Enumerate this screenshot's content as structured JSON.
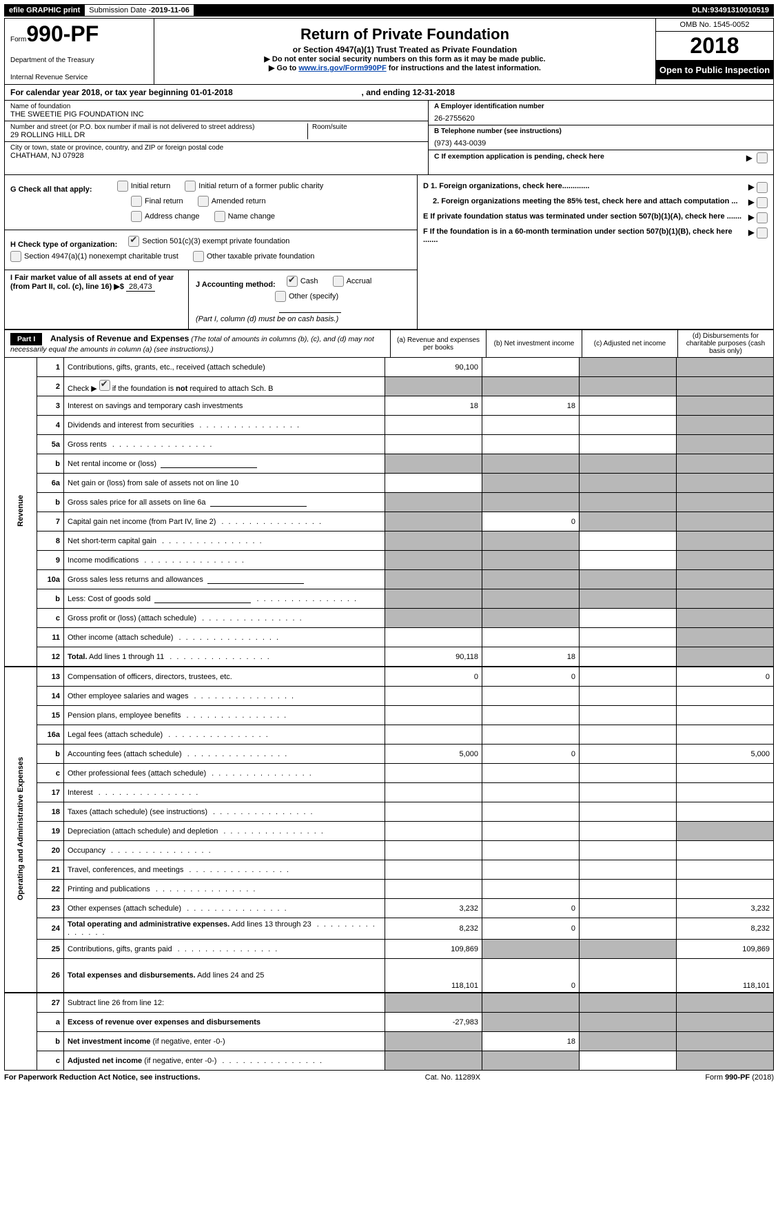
{
  "topbar": {
    "efile": "efile GRAPHIC print",
    "sub_label": "Submission Date - ",
    "sub_date": "2019-11-06",
    "dln_label": "DLN: ",
    "dln": "93491310010519"
  },
  "header": {
    "form_prefix": "Form",
    "form_no": "990-PF",
    "dept1": "Department of the Treasury",
    "dept2": "Internal Revenue Service",
    "title": "Return of Private Foundation",
    "subtitle": "or Section 4947(a)(1) Trust Treated as Private Foundation",
    "warn": "▶ Do not enter social security numbers on this form as it may be made public.",
    "goto_pre": "▶ Go to ",
    "goto_link": "www.irs.gov/Form990PF",
    "goto_post": " for instructions and the latest information.",
    "omb": "OMB No. 1545-0052",
    "year": "2018",
    "open": "Open to Public Inspection"
  },
  "calendar": {
    "pre": "For calendar year 2018, or tax year beginning ",
    "begin": "01-01-2018",
    "mid": " , and ending ",
    "end": "12-31-2018"
  },
  "entity": {
    "name_label": "Name of foundation",
    "name": "THE SWEETIE PIG FOUNDATION INC",
    "addr_label": "Number and street (or P.O. box number if mail is not delivered to street address)",
    "addr": "29 ROLLING HILL DR",
    "room_label": "Room/suite",
    "room": "",
    "city_label": "City or town, state or province, country, and ZIP or foreign postal code",
    "city": "CHATHAM, NJ  07928",
    "A_label": "A Employer identification number",
    "A": "26-2755620",
    "B_label": "B Telephone number (see instructions)",
    "B": "(973) 443-0039",
    "C_label": "C  If exemption application is pending, check here"
  },
  "G": {
    "label": "G Check all that apply:",
    "opts": [
      "Initial return",
      "Initial return of a former public charity",
      "Final return",
      "Amended return",
      "Address change",
      "Name change"
    ]
  },
  "H": {
    "label": "H Check type of organization:",
    "o1": "Section 501(c)(3) exempt private foundation",
    "o2": "Section 4947(a)(1) nonexempt charitable trust",
    "o3": "Other taxable private foundation"
  },
  "I": {
    "label": "I Fair market value of all assets at end of year (from Part II, col. (c), line 16) ▶$",
    "value": "28,473"
  },
  "J": {
    "label": "J Accounting method:",
    "cash": "Cash",
    "accrual": "Accrual",
    "other": "Other (specify)",
    "note": "(Part I, column (d) must be on cash basis.)"
  },
  "right_DEF": {
    "D1": "D 1. Foreign organizations, check here.............",
    "D2": "2. Foreign organizations meeting the 85% test, check here and attach computation ...",
    "E": "E   If private foundation status was terminated under section 507(b)(1)(A), check here .......",
    "F": "F   If the foundation is in a 60-month termination under section 507(b)(1)(B), check here ......."
  },
  "part1": {
    "label": "Part I",
    "heading": "Analysis of Revenue and Expenses",
    "note": "(The total of amounts in columns (b), (c), and (d) may not necessarily equal the amounts in column (a) (see instructions).)",
    "cols": {
      "a": "(a)    Revenue and expenses per books",
      "b": "(b)    Net investment income",
      "c": "(c)    Adjusted net income",
      "d": "(d)    Disbursements for charitable purposes (cash basis only)"
    }
  },
  "rev_label": "Revenue",
  "exp_label": "Operating and Administrative Expenses",
  "rows": [
    {
      "n": "1",
      "t": "Contributions, gifts, grants, etc., received (attach schedule)",
      "a": "90,100",
      "b": "",
      "c": "shade",
      "d": "shade"
    },
    {
      "n": "2",
      "t": "Check ▶ [CB] if the foundation is <b>not</b> required to attach Sch. B",
      "a": "shade",
      "b": "shade",
      "c": "shade",
      "d": "shade",
      "cb": true
    },
    {
      "n": "3",
      "t": "Interest on savings and temporary cash investments",
      "a": "18",
      "b": "18",
      "c": "",
      "d": "shade"
    },
    {
      "n": "4",
      "t": "Dividends and interest from securities",
      "dots": true,
      "a": "",
      "b": "",
      "c": "",
      "d": "shade"
    },
    {
      "n": "5a",
      "t": "Gross rents",
      "dots": true,
      "a": "",
      "b": "",
      "c": "",
      "d": "shade"
    },
    {
      "n": "b",
      "t": "Net rental income or (loss)",
      "uf": true,
      "a": "shade",
      "b": "shade",
      "c": "shade",
      "d": "shade"
    },
    {
      "n": "6a",
      "t": "Net gain or (loss) from sale of assets not on line 10",
      "a": "",
      "b": "shade",
      "c": "shade",
      "d": "shade"
    },
    {
      "n": "b",
      "t": "Gross sales price for all assets on line 6a",
      "uf": true,
      "a": "shade",
      "b": "shade",
      "c": "shade",
      "d": "shade"
    },
    {
      "n": "7",
      "t": "Capital gain net income (from Part IV, line 2)",
      "dots": true,
      "a": "shade",
      "b": "0",
      "c": "shade",
      "d": "shade"
    },
    {
      "n": "8",
      "t": "Net short-term capital gain",
      "dots": true,
      "a": "shade",
      "b": "shade",
      "c": "",
      "d": "shade"
    },
    {
      "n": "9",
      "t": "Income modifications",
      "dots": true,
      "a": "shade",
      "b": "shade",
      "c": "",
      "d": "shade"
    },
    {
      "n": "10a",
      "t": "Gross sales less returns and allowances",
      "uf": true,
      "short": true,
      "a": "shade",
      "b": "shade",
      "c": "shade",
      "d": "shade"
    },
    {
      "n": "b",
      "t": "Less: Cost of goods sold",
      "dots": true,
      "uf": true,
      "short": true,
      "a": "shade",
      "b": "shade",
      "c": "shade",
      "d": "shade"
    },
    {
      "n": "c",
      "t": "Gross profit or (loss) (attach schedule)",
      "dots": true,
      "a": "shade",
      "b": "shade",
      "c": "",
      "d": "shade"
    },
    {
      "n": "11",
      "t": "Other income (attach schedule)",
      "dots": true,
      "a": "",
      "b": "",
      "c": "",
      "d": "shade"
    },
    {
      "n": "12",
      "t": "<b>Total.</b> Add lines 1 through 11",
      "dots": true,
      "a": "90,118",
      "b": "18",
      "c": "",
      "d": "shade"
    }
  ],
  "exp_rows": [
    {
      "n": "13",
      "t": "Compensation of officers, directors, trustees, etc.",
      "a": "0",
      "b": "0",
      "c": "",
      "d": "0"
    },
    {
      "n": "14",
      "t": "Other employee salaries and wages",
      "dots": true,
      "a": "",
      "b": "",
      "c": "",
      "d": ""
    },
    {
      "n": "15",
      "t": "Pension plans, employee benefits",
      "dots": true,
      "a": "",
      "b": "",
      "c": "",
      "d": ""
    },
    {
      "n": "16a",
      "t": "Legal fees (attach schedule)",
      "dots": true,
      "a": "",
      "b": "",
      "c": "",
      "d": ""
    },
    {
      "n": "b",
      "t": "Accounting fees (attach schedule)",
      "dots": true,
      "a": "5,000",
      "b": "0",
      "c": "",
      "d": "5,000"
    },
    {
      "n": "c",
      "t": "Other professional fees (attach schedule)",
      "dots": true,
      "a": "",
      "b": "",
      "c": "",
      "d": ""
    },
    {
      "n": "17",
      "t": "Interest",
      "dots": true,
      "a": "",
      "b": "",
      "c": "",
      "d": ""
    },
    {
      "n": "18",
      "t": "Taxes (attach schedule) (see instructions)",
      "dots": true,
      "a": "",
      "b": "",
      "c": "",
      "d": ""
    },
    {
      "n": "19",
      "t": "Depreciation (attach schedule) and depletion",
      "dots": true,
      "a": "",
      "b": "",
      "c": "",
      "d": "shade"
    },
    {
      "n": "20",
      "t": "Occupancy",
      "dots": true,
      "a": "",
      "b": "",
      "c": "",
      "d": ""
    },
    {
      "n": "21",
      "t": "Travel, conferences, and meetings",
      "dots": true,
      "a": "",
      "b": "",
      "c": "",
      "d": ""
    },
    {
      "n": "22",
      "t": "Printing and publications",
      "dots": true,
      "a": "",
      "b": "",
      "c": "",
      "d": ""
    },
    {
      "n": "23",
      "t": "Other expenses (attach schedule)",
      "dots": true,
      "a": "3,232",
      "b": "0",
      "c": "",
      "d": "3,232"
    },
    {
      "n": "24",
      "t": "<b>Total operating and administrative expenses.</b> Add lines 13 through 23",
      "dots": true,
      "a": "8,232",
      "b": "0",
      "c": "",
      "d": "8,232"
    },
    {
      "n": "25",
      "t": "Contributions, gifts, grants paid",
      "dots": true,
      "a": "109,869",
      "b": "shade",
      "c": "shade",
      "d": "109,869"
    },
    {
      "n": "26",
      "t": "<b>Total expenses and disbursements.</b> Add lines 24 and 25",
      "a": "118,101",
      "b": "0",
      "c": "",
      "d": "118,101",
      "tall": true
    }
  ],
  "bottom_rows": [
    {
      "n": "27",
      "t": "Subtract line 26 from line 12:",
      "a": "shade",
      "b": "shade",
      "c": "shade",
      "d": "shade"
    },
    {
      "n": "a",
      "t": "<b>Excess of revenue over expenses and disbursements</b>",
      "a": "-27,983",
      "b": "shade",
      "c": "shade",
      "d": "shade"
    },
    {
      "n": "b",
      "t": "<b>Net investment income</b> (if negative, enter -0-)",
      "a": "shade",
      "b": "18",
      "c": "shade",
      "d": "shade"
    },
    {
      "n": "c",
      "t": "<b>Adjusted net income</b> (if negative, enter -0-)",
      "dots": true,
      "a": "shade",
      "b": "shade",
      "c": "",
      "d": "shade"
    }
  ],
  "footer": {
    "left": "For Paperwork Reduction Act Notice, see instructions.",
    "mid": "Cat. No. 11289X",
    "right_pre": "Form ",
    "right_form": "990-PF",
    "right_post": " (2018)"
  }
}
